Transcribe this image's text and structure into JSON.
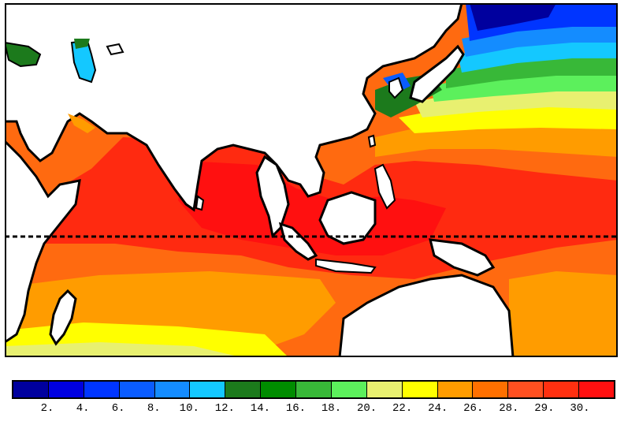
{
  "legend": {
    "colors": [
      "#00009e",
      "#0000e0",
      "#0035ff",
      "#0a5cff",
      "#148cff",
      "#14c8ff",
      "#1c7a1c",
      "#008c00",
      "#38b838",
      "#5cf05c",
      "#e8f070",
      "#ffff00",
      "#ff9c00",
      "#ff7000",
      "#ff5020",
      "#ff3010",
      "#ff1010"
    ],
    "labels": [
      "2.",
      "4.",
      "6.",
      "8.",
      "10.",
      "12.",
      "14.",
      "16.",
      "18.",
      "20.",
      "22.",
      "24.",
      "26.",
      "28.",
      "29.",
      "30."
    ]
  },
  "map": {
    "background_color": "#ff6a10",
    "land_color": "#ffffff",
    "coast_color": "#000000",
    "equator_line": "dashed"
  }
}
